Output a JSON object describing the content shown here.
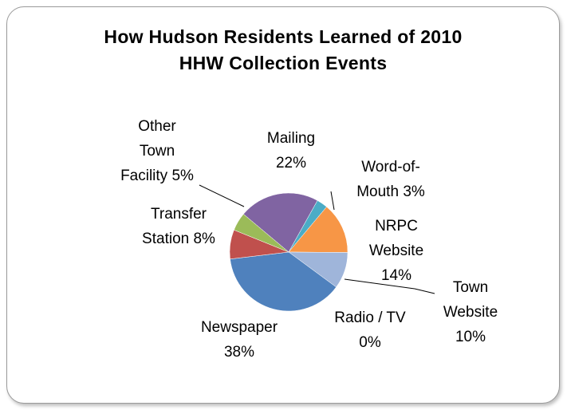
{
  "chart_data": {
    "type": "pie",
    "title": "How Hudson Residents Learned of 2010 HHW Collection Events",
    "categories": [
      "Mailing",
      "Word-of-Mouth",
      "NRPC Website",
      "Town Website",
      "Radio / TV",
      "Newspaper",
      "Transfer Station",
      "Other Town Facility"
    ],
    "values": [
      22,
      3,
      14,
      10,
      0,
      38,
      8,
      5
    ],
    "value_labels": [
      "22%",
      "3%",
      "14%",
      "10%",
      "0%",
      "38%",
      "8%",
      "5%"
    ],
    "colors": [
      "#8064a2",
      "#4bacc6",
      "#f79646",
      "#9fb5da",
      "#c0504d",
      "#4f81bd",
      "#c0504d",
      "#9bbb59"
    ]
  }
}
